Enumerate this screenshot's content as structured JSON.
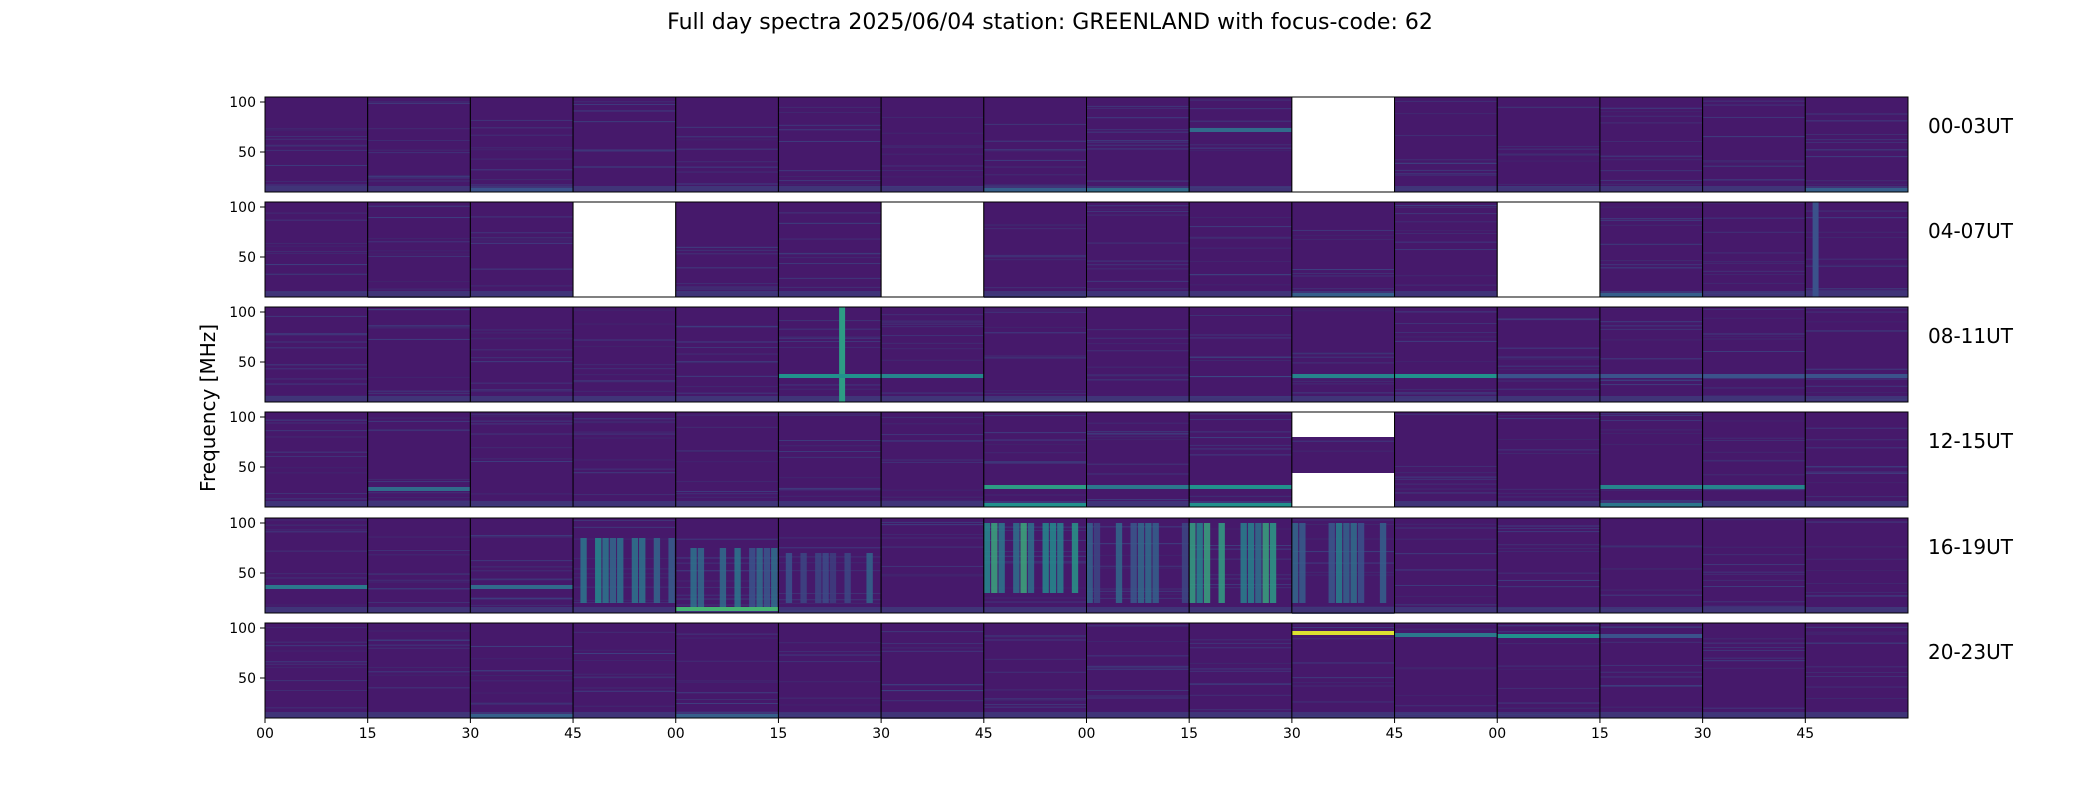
{
  "chart_data": {
    "type": "heatmap",
    "title": "Full day spectra 2025/06/04 station: GREENLAND with focus-code: 62",
    "ylabel": "Frequency [MHz]",
    "ylim": [
      10,
      105
    ],
    "y_ticks": [
      50,
      100
    ],
    "x_tick_labels": [
      "00",
      "15",
      "30",
      "45",
      "00",
      "15",
      "30",
      "45",
      "00",
      "15",
      "30",
      "45",
      "00",
      "15",
      "30",
      "45"
    ],
    "colormap": "viridis",
    "colors": {
      "background": "#440154",
      "cell_base": "#46196b",
      "weak": "#3b528b",
      "medium": "#21918c",
      "strong": "#5ec962",
      "max": "#fde725",
      "missing": "#ffffff",
      "frame": "#000000"
    },
    "rows": [
      {
        "label": "00-03UT",
        "missing": [
          10
        ],
        "features": [
          {
            "cell": 2,
            "type": "hline",
            "freq": 12,
            "intensity": 0.25
          },
          {
            "cell": 8,
            "type": "hline",
            "freq": 12,
            "intensity": 0.35
          },
          {
            "cell": 7,
            "type": "hline",
            "freq": 12,
            "intensity": 0.3
          },
          {
            "cell": 9,
            "type": "hline",
            "freq": 72,
            "intensity": 0.35
          },
          {
            "cell": 15,
            "type": "hline",
            "freq": 12,
            "intensity": 0.3
          }
        ]
      },
      {
        "label": "04-07UT",
        "missing": [
          3,
          6,
          12
        ],
        "features": [
          {
            "cell": 10,
            "type": "hline",
            "freq": 12,
            "intensity": 0.3
          },
          {
            "cell": 13,
            "type": "hline",
            "freq": 12,
            "intensity": 0.3
          },
          {
            "cell": 15,
            "type": "vline",
            "pos": 0.1,
            "intensity": 0.25
          }
        ]
      },
      {
        "label": "08-11UT",
        "missing": [],
        "features": [
          {
            "cell": 5,
            "type": "vline",
            "pos": 0.62,
            "intensity": 0.55
          },
          {
            "cell": 5,
            "type": "hline",
            "freq": 36,
            "intensity": 0.5
          },
          {
            "cell": 6,
            "type": "hline",
            "freq": 36,
            "intensity": 0.45
          },
          {
            "cell": 10,
            "type": "hline",
            "freq": 36,
            "intensity": 0.45
          },
          {
            "cell": 11,
            "type": "hline",
            "freq": 36,
            "intensity": 0.5
          },
          {
            "cell": 12,
            "type": "hline",
            "freq": 36,
            "intensity": 0.25
          },
          {
            "cell": 13,
            "type": "hline",
            "freq": 36,
            "intensity": 0.25
          },
          {
            "cell": 14,
            "type": "hline",
            "freq": 36,
            "intensity": 0.25
          },
          {
            "cell": 15,
            "type": "hline",
            "freq": 36,
            "intensity": 0.25
          }
        ]
      },
      {
        "label": "12-15UT",
        "missing": [],
        "partial_missing": [
          {
            "cell": 10,
            "from_freq": 80,
            "to_freq": 105
          },
          {
            "cell": 10,
            "from_freq": 10,
            "to_freq": 44
          }
        ],
        "features": [
          {
            "cell": 1,
            "type": "hline",
            "freq": 28,
            "intensity": 0.35
          },
          {
            "cell": 7,
            "type": "hline",
            "freq": 30,
            "intensity": 0.55
          },
          {
            "cell": 7,
            "type": "hline",
            "freq": 12,
            "intensity": 0.5
          },
          {
            "cell": 8,
            "type": "hline",
            "freq": 30,
            "intensity": 0.4
          },
          {
            "cell": 9,
            "type": "hline",
            "freq": 30,
            "intensity": 0.5
          },
          {
            "cell": 9,
            "type": "hline",
            "freq": 12,
            "intensity": 0.5
          },
          {
            "cell": 13,
            "type": "hline",
            "freq": 30,
            "intensity": 0.45
          },
          {
            "cell": 14,
            "type": "hline",
            "freq": 30,
            "intensity": 0.45
          },
          {
            "cell": 13,
            "type": "hline",
            "freq": 12,
            "intensity": 0.4
          }
        ]
      },
      {
        "label": "16-19UT",
        "missing": [],
        "features": [
          {
            "cell": 0,
            "type": "hline",
            "freq": 36,
            "intensity": 0.4
          },
          {
            "cell": 2,
            "type": "hline",
            "freq": 36,
            "intensity": 0.35
          },
          {
            "cell": 3,
            "type": "block",
            "from_freq": 20,
            "to_freq": 85,
            "intensity": 0.45
          },
          {
            "cell": 4,
            "type": "block",
            "from_freq": 15,
            "to_freq": 75,
            "intensity": 0.4
          },
          {
            "cell": 4,
            "type": "hline",
            "freq": 14,
            "intensity": 0.65
          },
          {
            "cell": 5,
            "type": "block",
            "from_freq": 20,
            "to_freq": 70,
            "intensity": 0.3
          },
          {
            "cell": 7,
            "type": "block",
            "from_freq": 30,
            "to_freq": 100,
            "intensity": 0.6
          },
          {
            "cell": 8,
            "type": "block",
            "from_freq": 20,
            "to_freq": 100,
            "intensity": 0.35
          },
          {
            "cell": 9,
            "type": "block",
            "from_freq": 20,
            "to_freq": 100,
            "intensity": 0.55
          },
          {
            "cell": 10,
            "type": "block",
            "from_freq": 20,
            "to_freq": 100,
            "intensity": 0.4
          }
        ]
      },
      {
        "label": "20-23UT",
        "missing": [],
        "features": [
          {
            "cell": 10,
            "type": "hline",
            "freq": 95,
            "intensity": 0.95
          },
          {
            "cell": 11,
            "type": "hline",
            "freq": 93,
            "intensity": 0.4
          },
          {
            "cell": 12,
            "type": "hline",
            "freq": 92,
            "intensity": 0.5
          },
          {
            "cell": 13,
            "type": "hline",
            "freq": 92,
            "intensity": 0.25
          },
          {
            "cell": 2,
            "type": "hline",
            "freq": 12,
            "intensity": 0.3
          },
          {
            "cell": 4,
            "type": "hline",
            "freq": 12,
            "intensity": 0.3
          }
        ]
      }
    ]
  }
}
